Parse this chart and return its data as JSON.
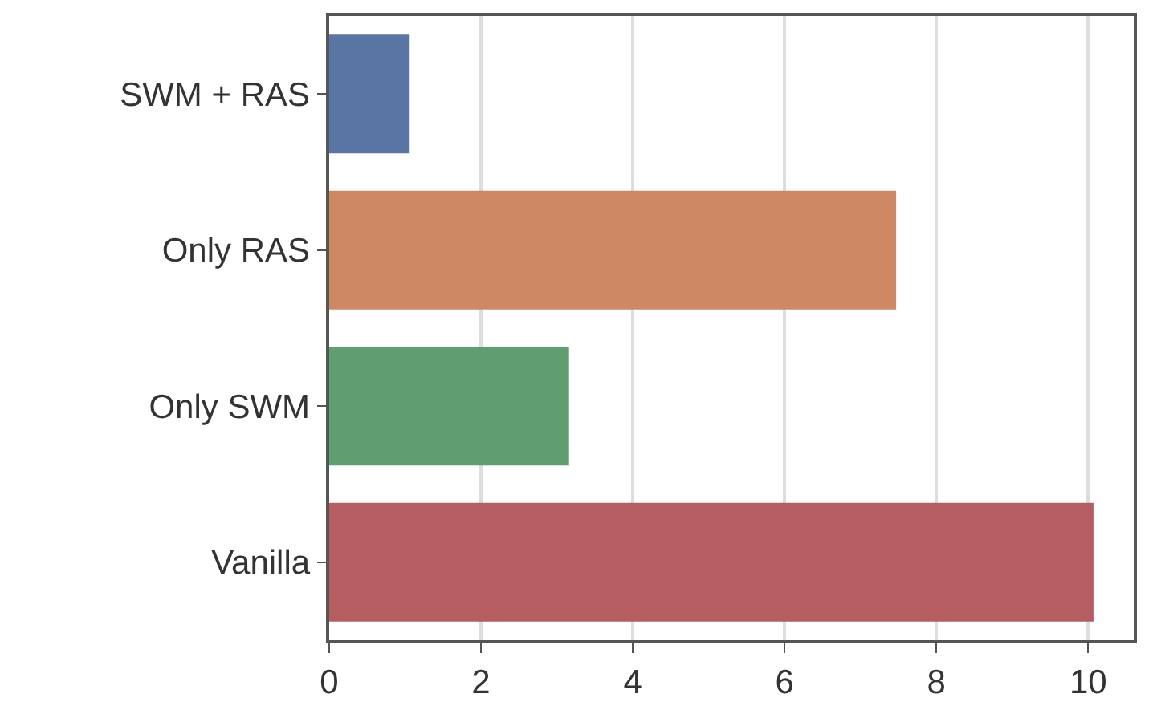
{
  "chart_data": {
    "type": "bar",
    "orientation": "horizontal",
    "categories": [
      "SWM + RAS",
      "Only RAS",
      "Only SWM",
      "Vanilla"
    ],
    "values": [
      1.06,
      7.47,
      3.16,
      10.07
    ],
    "colors": [
      "#5875a4",
      "#cc8963",
      "#5f9e6e",
      "#b55d60"
    ],
    "xlim": [
      0,
      10.6
    ],
    "xticks": [
      0,
      2,
      4,
      6,
      8,
      10
    ],
    "grid": "x"
  }
}
